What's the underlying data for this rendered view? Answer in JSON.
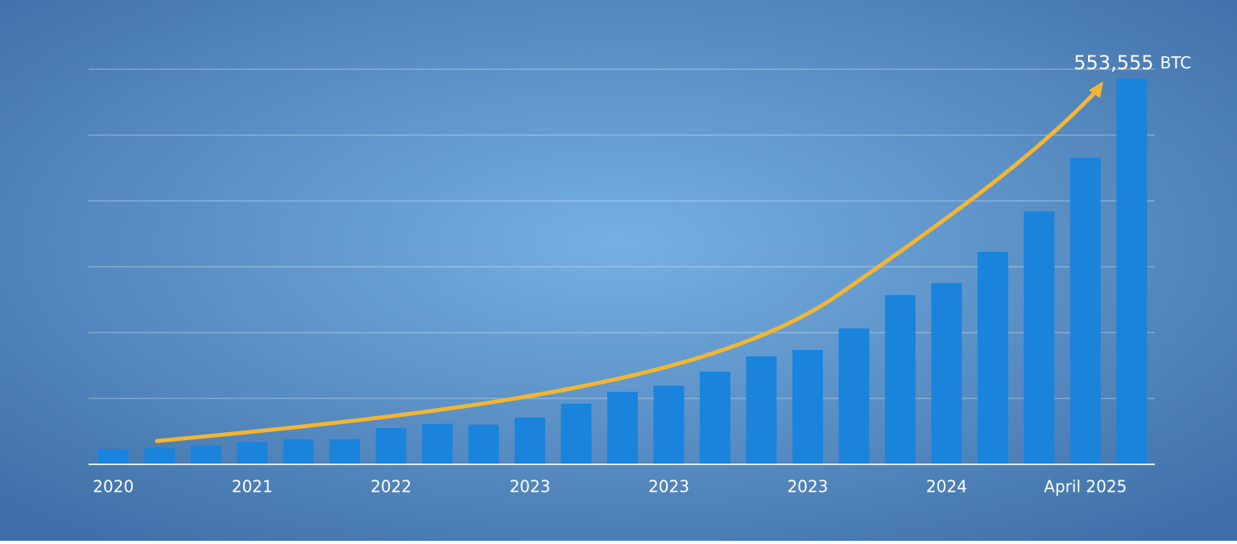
{
  "chart_data": {
    "type": "bar",
    "categories": [
      "2020",
      null,
      null,
      "2021",
      null,
      null,
      "2022",
      null,
      null,
      "2023",
      null,
      null,
      "2023",
      null,
      null,
      "2023",
      null,
      null,
      "2024",
      null,
      null,
      "April 2025",
      null
    ],
    "values": [
      22000,
      24000,
      27000,
      32000,
      36000,
      36000,
      52000,
      58000,
      57000,
      67000,
      87000,
      104000,
      113000,
      133000,
      155000,
      164000,
      195000,
      243000,
      260000,
      305000,
      363000,
      440000,
      553555
    ],
    "value_labels": [
      null,
      null,
      null,
      null,
      null,
      null,
      null,
      null,
      null,
      null,
      null,
      null,
      null,
      null,
      null,
      null,
      null,
      null,
      null,
      null,
      null,
      null,
      "553,555"
    ],
    "unit": "BTC",
    "color": "#1a84dc",
    "ylim": [
      0,
      567000
    ],
    "grid": true
  }
}
